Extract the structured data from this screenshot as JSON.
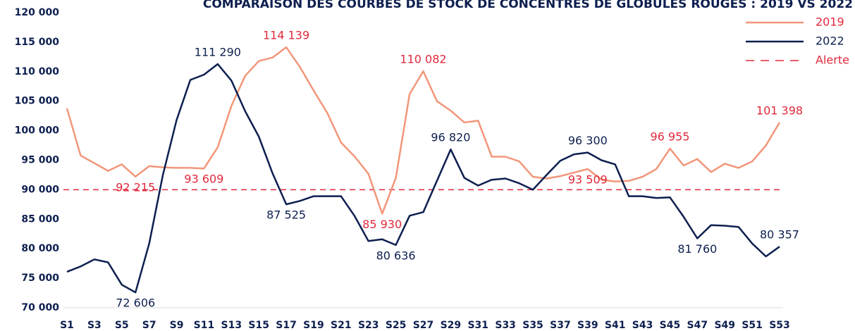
{
  "chart_data": {
    "type": "line",
    "title": "COMPARAISON DES COURBES DE STOCK DE CONCENTRÉS DE GLOBULES ROUGES : 2019 VS 2022",
    "categories": [
      "S1",
      null,
      "S3",
      null,
      "S5",
      null,
      "S7",
      null,
      "S9",
      null,
      "S11",
      null,
      "S13",
      null,
      "S15",
      null,
      "S17",
      null,
      "S19",
      null,
      "S21",
      null,
      "S23",
      null,
      "S25",
      null,
      "S27",
      null,
      "S29",
      null,
      "S31",
      null,
      "S33",
      null,
      "S35",
      null,
      "S37",
      null,
      "S39",
      null,
      "S41",
      null,
      "S43",
      null,
      "S45",
      null,
      "S47",
      null,
      "S49",
      null,
      "S51",
      null,
      "S53"
    ],
    "series": [
      {
        "name": "2019",
        "color": "#f2967a",
        "label_color": "#e0283c",
        "values": [
          103800,
          95800,
          94500,
          93200,
          94300,
          92215,
          94000,
          93800,
          93700,
          93700,
          93609,
          97200,
          104200,
          109300,
          111800,
          112400,
          114139,
          110800,
          106800,
          103000,
          98000,
          95600,
          92700,
          85930,
          92000,
          106200,
          110082,
          105000,
          103400,
          101400,
          101700,
          95600,
          95600,
          94800,
          92200,
          91900,
          92300,
          92900,
          93509,
          91700,
          91400,
          91500,
          92200,
          93500,
          96955,
          94100,
          95200,
          93000,
          94400,
          93700,
          94800,
          97500,
          101398
        ],
        "value_labels": [
          null,
          null,
          null,
          null,
          null,
          "92 215",
          null,
          null,
          null,
          null,
          "93 609",
          null,
          null,
          null,
          null,
          null,
          "114 139",
          null,
          null,
          null,
          null,
          null,
          null,
          "85 930",
          null,
          null,
          "110 082",
          null,
          null,
          null,
          null,
          null,
          null,
          null,
          null,
          null,
          null,
          null,
          "93 509",
          null,
          null,
          null,
          null,
          null,
          "96 955",
          null,
          null,
          null,
          null,
          null,
          null,
          null,
          "101 398"
        ]
      },
      {
        "name": "2022",
        "color": "#0d1f4f",
        "label_color": "#0d1f4f",
        "values": [
          76100,
          77000,
          78200,
          77700,
          73900,
          72606,
          80900,
          92500,
          101800,
          108600,
          109500,
          111290,
          108500,
          103300,
          99000,
          92800,
          87525,
          88100,
          88900,
          88900,
          88900,
          85500,
          81300,
          81600,
          80636,
          85600,
          86200,
          91500,
          96820,
          92000,
          90700,
          91700,
          91900,
          91100,
          90000,
          92500,
          94900,
          96000,
          96300,
          95000,
          94300,
          88900,
          88900,
          88600,
          88700,
          85400,
          81760,
          84000,
          83900,
          83700,
          80900,
          78700,
          80357
        ],
        "value_labels": [
          null,
          null,
          null,
          null,
          null,
          "72 606",
          null,
          null,
          null,
          null,
          null,
          "111 290",
          null,
          null,
          null,
          null,
          "87 525",
          null,
          null,
          null,
          null,
          null,
          null,
          null,
          "80 636",
          null,
          null,
          null,
          "96 820",
          null,
          null,
          null,
          null,
          null,
          null,
          null,
          null,
          null,
          "96 300",
          null,
          null,
          null,
          null,
          null,
          null,
          null,
          "81 760",
          null,
          null,
          null,
          null,
          null,
          "80 357"
        ]
      }
    ],
    "alert": {
      "name": "Alerte",
      "value": 90000,
      "color": "#e0283c"
    },
    "ylim": [
      70000,
      120000
    ],
    "yticks": [
      {
        "value": 70000,
        "label": "70 000"
      },
      {
        "value": 75000,
        "label": "75 000"
      },
      {
        "value": 80000,
        "label": "80 000"
      },
      {
        "value": 85000,
        "label": "85 000"
      },
      {
        "value": 90000,
        "label": "90 000"
      },
      {
        "value": 95000,
        "label": "95 000"
      },
      {
        "value": 100000,
        "label": "100 000"
      },
      {
        "value": 105000,
        "label": "105 000"
      },
      {
        "value": 110000,
        "label": "110 000"
      },
      {
        "value": 115000,
        "label": "115 000"
      },
      {
        "value": 120000,
        "label": "120 000"
      }
    ],
    "grid": false,
    "legend": "top-right"
  }
}
